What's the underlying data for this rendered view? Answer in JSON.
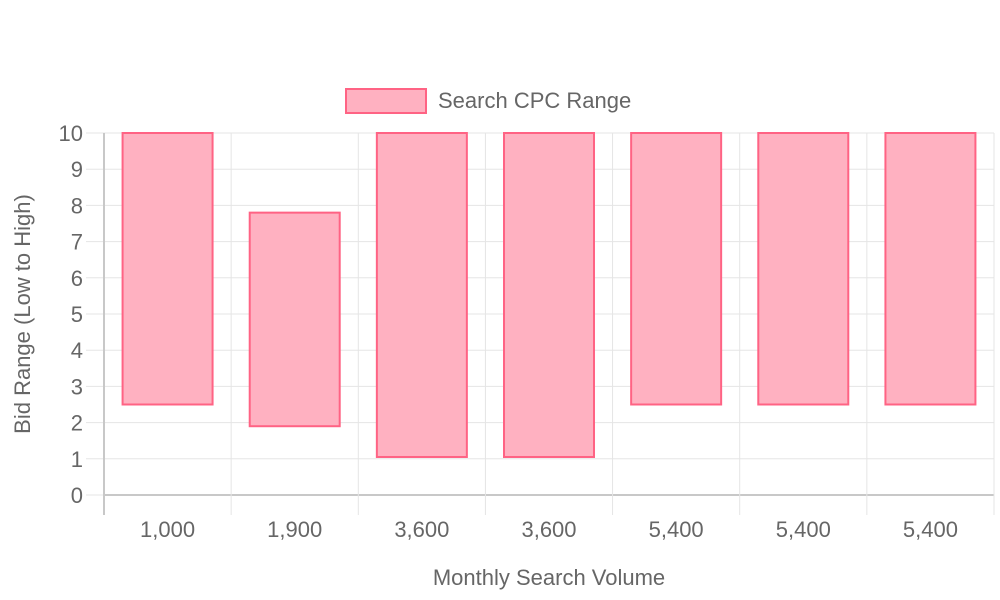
{
  "chart_data": {
    "type": "bar",
    "subtype": "floating-range",
    "categories": [
      "1,000",
      "1,900",
      "3,600",
      "3,600",
      "5,400",
      "5,400",
      "5,400"
    ],
    "series": [
      {
        "name": "Search CPC Range",
        "ranges": [
          [
            2.5,
            10
          ],
          [
            1.9,
            7.8
          ],
          [
            1.05,
            10
          ],
          [
            1.05,
            10
          ],
          [
            2.5,
            10
          ],
          [
            2.5,
            10
          ],
          [
            2.5,
            10
          ]
        ]
      }
    ],
    "title": "",
    "xlabel": "Monthly Search Volume",
    "ylabel": "Bid Range (Low to High)",
    "ylim": [
      0,
      10
    ],
    "yticks": [
      "0",
      "1",
      "2",
      "3",
      "4",
      "5",
      "6",
      "7",
      "8",
      "9",
      "10"
    ],
    "grid": true,
    "legend_position": "top-center",
    "colors": {
      "bar_fill": "#ffb1c1",
      "bar_stroke": "#ff6384",
      "grid": "#e5e5e5",
      "axis": "#c8c8c8",
      "text": "#666666"
    }
  }
}
